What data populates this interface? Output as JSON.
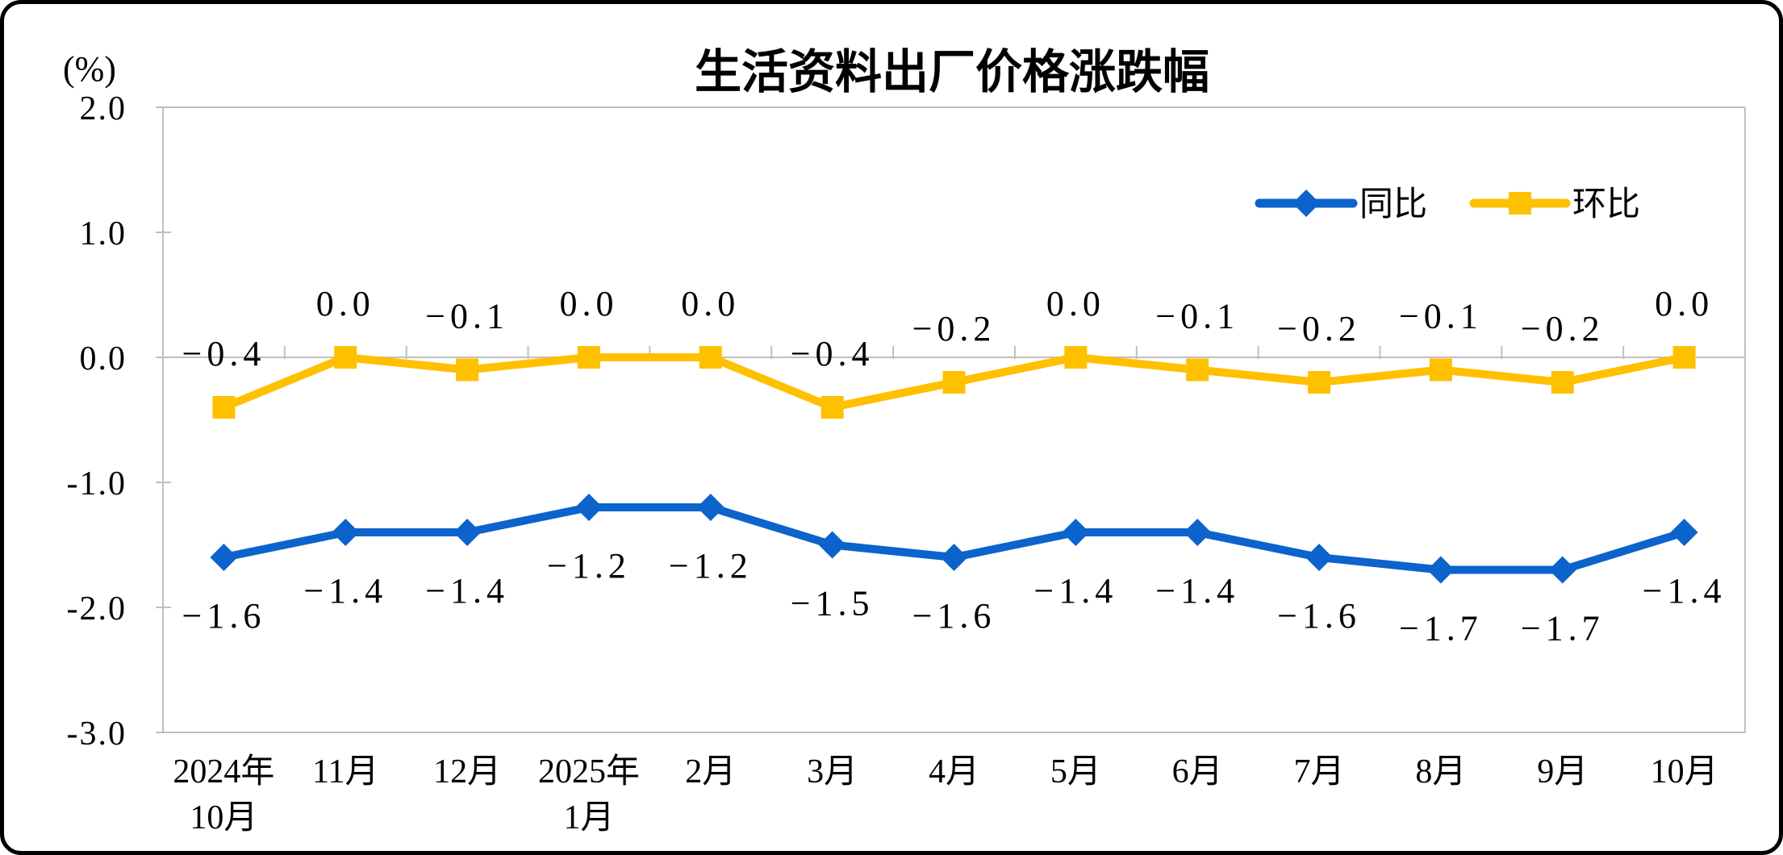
{
  "chart_data": {
    "type": "line",
    "title": "生活资料出厂价格涨跌幅",
    "unit_label": "(%)",
    "categories": [
      [
        "2024年",
        "10月"
      ],
      [
        "11月"
      ],
      [
        "12月"
      ],
      [
        "2025年",
        "1月"
      ],
      [
        "2月"
      ],
      [
        "3月"
      ],
      [
        "4月"
      ],
      [
        "5月"
      ],
      [
        "6月"
      ],
      [
        "7月"
      ],
      [
        "8月"
      ],
      [
        "9月"
      ],
      [
        "10月"
      ]
    ],
    "series": [
      {
        "name": "同比",
        "color": "#0C63CC",
        "marker": "diamond",
        "label_position": "below",
        "values": [
          -1.6,
          -1.4,
          -1.4,
          -1.2,
          -1.2,
          -1.5,
          -1.6,
          -1.4,
          -1.4,
          -1.6,
          -1.7,
          -1.7,
          -1.4
        ],
        "labels": [
          "-1.6",
          "-1.4",
          "-1.4",
          "-1.2",
          "-1.2",
          "-1.5",
          "-1.6",
          "-1.4",
          "-1.4",
          "-1.6",
          "-1.7",
          "-1.7",
          "-1.4"
        ]
      },
      {
        "name": "环比",
        "color": "#FFC000",
        "marker": "square",
        "label_position": "above",
        "values": [
          -0.4,
          0.0,
          -0.1,
          0.0,
          0.0,
          -0.4,
          -0.2,
          0.0,
          -0.1,
          -0.2,
          -0.1,
          -0.2,
          0.0
        ],
        "labels": [
          "-0.4",
          "0.0",
          "-0.1",
          "0.0",
          "0.0",
          "-0.4",
          "-0.2",
          "0.0",
          "-0.1",
          "-0.2",
          "-0.1",
          "-0.2",
          "0.0"
        ]
      }
    ],
    "ylim": [
      -3.0,
      2.0
    ],
    "yticks": [
      {
        "value": 2.0,
        "label": "2.0"
      },
      {
        "value": 1.0,
        "label": "1.0"
      },
      {
        "value": 0.0,
        "label": "0.0"
      },
      {
        "value": -1.0,
        "label": "-1.0"
      },
      {
        "value": -2.0,
        "label": "-2.0"
      },
      {
        "value": -3.0,
        "label": "-3.0"
      }
    ],
    "legend": {
      "position": "top-right-inside",
      "items": [
        {
          "label": "同比",
          "color": "#0C63CC",
          "marker": "diamond"
        },
        {
          "label": "环比",
          "color": "#FFC000",
          "marker": "square"
        }
      ]
    },
    "grid": "zero-line-only",
    "axis_color": "#C0C0C0",
    "label_color": "#000000",
    "background": "#ffffff"
  }
}
